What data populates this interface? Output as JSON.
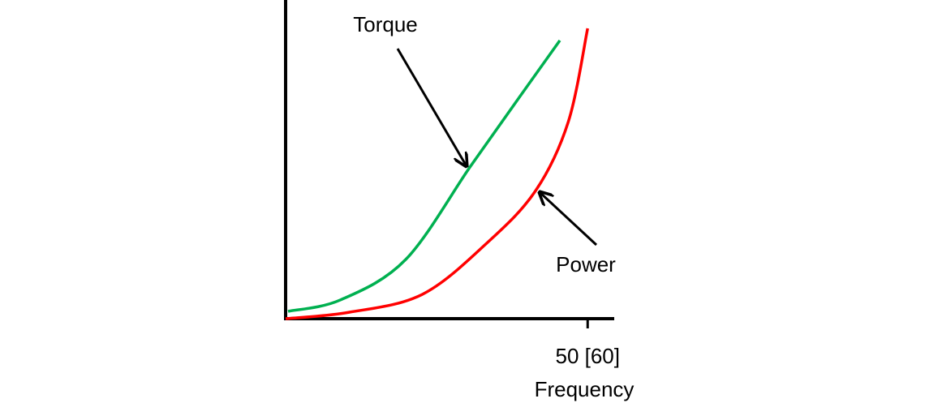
{
  "chart_data": {
    "type": "line",
    "xlabel": "Frequency",
    "xlim": [
      0,
      54.4
    ],
    "ylim": [
      0,
      100
    ],
    "xticks": [
      {
        "value": 50,
        "label": "50 [60]"
      }
    ],
    "series": [
      {
        "name": "Torque",
        "color": "#00b050",
        "x": [
          0.4,
          9.1,
          19.9,
          30.6,
          38.7,
          45.4
        ],
        "values": [
          2.3,
          5.9,
          18.6,
          47.8,
          69.5,
          87.3
        ]
      },
      {
        "name": "Power",
        "color": "#ff0000",
        "x": [
          0,
          10.5,
          22.6,
          33.3,
          41.4,
          46.8,
          50
        ],
        "values": [
          0,
          2.0,
          7.6,
          23.7,
          40.2,
          61.8,
          91.1
        ]
      }
    ]
  }
}
